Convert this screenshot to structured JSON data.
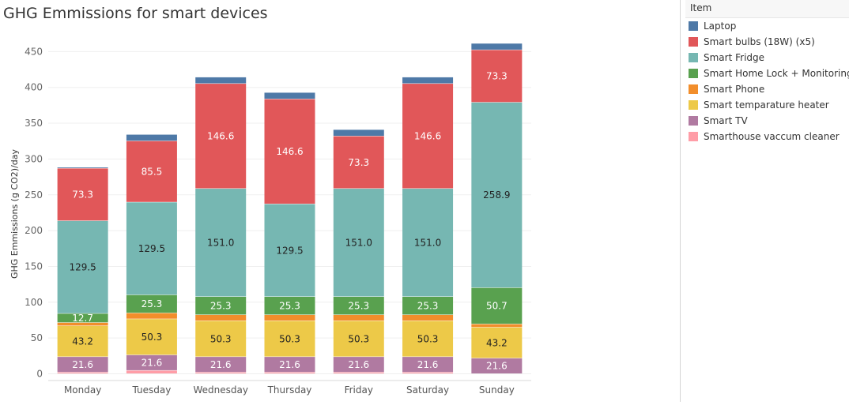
{
  "chart_data": {
    "type": "bar",
    "stacked": true,
    "title": "GHG Emmissions for smart devices",
    "xlabel": "",
    "ylabel": "GHG Emmissions (g CO2)/day",
    "ylim": [
      0,
      460
    ],
    "yticks": [
      0,
      50,
      100,
      150,
      200,
      250,
      300,
      350,
      400,
      450
    ],
    "grid": true,
    "legend_title": "Item",
    "legend_position": "right",
    "categories": [
      "Monday",
      "Tuesday",
      "Wednesday",
      "Thursday",
      "Friday",
      "Saturday",
      "Sunday"
    ],
    "series": [
      {
        "name": "Smarthouse  vaccum cleaner",
        "color": "#ff9da7",
        "values": [
          2.0,
          4.5,
          2.0,
          2.0,
          2.0,
          2.0,
          0
        ],
        "show_labels": false
      },
      {
        "name": "Smart TV",
        "color": "#b07aa1",
        "values": [
          21.6,
          21.6,
          21.6,
          21.6,
          21.6,
          21.6,
          21.6
        ],
        "show_labels": true
      },
      {
        "name": "Smart temparature heater",
        "color": "#edc948",
        "values": [
          43.2,
          50.3,
          50.3,
          50.3,
          50.3,
          50.3,
          43.2
        ],
        "show_labels": true
      },
      {
        "name": "Smart Phone",
        "color": "#f28e2b",
        "values": [
          4.5,
          8.3,
          8.3,
          8.3,
          8.3,
          8.3,
          4.5
        ],
        "show_labels": false
      },
      {
        "name": "Smart Home Lock + Monitoring",
        "color": "#59a14f",
        "values": [
          12.7,
          25.3,
          25.3,
          25.3,
          25.3,
          25.3,
          50.7
        ],
        "show_labels": true
      },
      {
        "name": "Smart Fridge",
        "color": "#76b7b2",
        "values": [
          129.5,
          129.5,
          151.0,
          129.5,
          151.0,
          151.0,
          258.9
        ],
        "show_labels": true
      },
      {
        "name": "Smart bulbs (18W) (x5)",
        "color": "#e15759",
        "values": [
          73.3,
          85.5,
          146.6,
          146.6,
          73.3,
          146.6,
          73.3
        ],
        "show_labels": true
      },
      {
        "name": "Laptop",
        "color": "#4e79a7",
        "values": [
          1.5,
          9.0,
          9.0,
          9.0,
          9.0,
          9.0,
          9.0
        ],
        "show_labels": false
      }
    ],
    "legend_order": [
      "Laptop",
      "Smart bulbs (18W) (x5)",
      "Smart Fridge",
      "Smart Home Lock + Monitoring",
      "Smart Phone",
      "Smart temparature heater",
      "Smart TV",
      "Smarthouse  vaccum cleaner"
    ]
  }
}
